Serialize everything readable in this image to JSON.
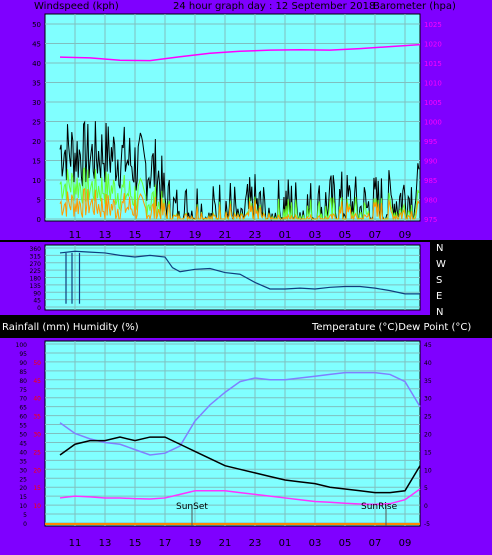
{
  "header": {
    "left_label": "Windspeed (kph)",
    "center_label": "24 hour graph day : 12 September 2018",
    "right_label": "Barometer (hpa)"
  },
  "x_ticks": [
    "11",
    "13",
    "15",
    "17",
    "19",
    "21",
    "23",
    "01",
    "03",
    "05",
    "07",
    "09"
  ],
  "wind_direction_labels": [
    "N",
    "W",
    "S",
    "E",
    "N"
  ],
  "bottom_header": {
    "left_label": "Rainfall (mm)  Humidity (%)",
    "right_label": "Temperature (°C)Dew Point (°C)"
  },
  "annotations": {
    "sunset": "SunSet",
    "sunrise": "SunRise"
  },
  "colors": {
    "panel_bg": "#80ffff",
    "frame": "#7f00ff",
    "grid": "#7fbfbf",
    "wind_gust": "#000000",
    "wind_avg": "#ff9900",
    "wind_mid": "#66ff33",
    "barometer": "#ff00ff",
    "direction": "#0f3f7f",
    "temperature": "#000000",
    "dewpoint": "#ff33ff",
    "humidity": "#8080ff",
    "rain_axis": "#ff0000"
  },
  "chart_data": [
    {
      "type": "line",
      "name": "wind-barometer",
      "left_axis": {
        "label": "Windspeed (kph)",
        "ticks": [
          0,
          5,
          10,
          15,
          20,
          25,
          30,
          35,
          40,
          45,
          50
        ],
        "range": [
          0,
          50
        ]
      },
      "right_axis": {
        "label": "Barometer (hpa)",
        "ticks": [
          975,
          980,
          985,
          990,
          995,
          1000,
          1005,
          1010,
          1015,
          1020,
          1025
        ],
        "range": [
          975,
          1025
        ]
      },
      "x_ticks": [
        "11",
        "13",
        "15",
        "17",
        "19",
        "21",
        "23",
        "01",
        "03",
        "05",
        "07",
        "09"
      ],
      "series": [
        {
          "key": "barometer",
          "axis": "right",
          "hours": [
            0,
            2,
            4,
            6,
            8,
            10,
            12,
            14,
            16,
            18,
            20,
            22,
            24
          ],
          "values": [
            1016.5,
            1016.3,
            1015.7,
            1015.6,
            1016.6,
            1017.5,
            1018.0,
            1018.3,
            1018.4,
            1018.3,
            1018.7,
            1019.2,
            1019.7
          ]
        },
        {
          "key": "wind_gust",
          "axis": "left",
          "hours": [
            0,
            1,
            2,
            3,
            4,
            5,
            6,
            6.5,
            7,
            8,
            9,
            10,
            11,
            12,
            13,
            14,
            15,
            16,
            17,
            18,
            19,
            20,
            21,
            22,
            23,
            24
          ],
          "values": [
            18,
            17,
            16,
            17,
            16,
            14,
            13,
            12,
            4,
            0,
            3,
            0,
            3,
            0,
            3,
            0,
            3,
            2,
            2,
            3,
            4,
            2,
            3,
            4,
            6,
            6
          ]
        },
        {
          "key": "wind_mid",
          "axis": "left",
          "hours": [
            0,
            1,
            2,
            3,
            4,
            5,
            6,
            6.5,
            7,
            8,
            9,
            10,
            11,
            12,
            13,
            14,
            15,
            16,
            17,
            18,
            19,
            20,
            21,
            22,
            23,
            24
          ],
          "values": [
            9,
            9,
            8,
            8,
            7,
            6,
            5,
            4,
            1,
            0,
            1,
            0,
            1,
            0,
            1,
            0,
            1,
            1,
            1,
            1,
            1,
            1,
            1,
            2,
            2,
            3
          ]
        },
        {
          "key": "wind_avg",
          "axis": "left",
          "hours": [
            0,
            1,
            2,
            3,
            4,
            5,
            6,
            6.5,
            7,
            8,
            9,
            10,
            11,
            12,
            13,
            14,
            15,
            16,
            17,
            18,
            19,
            20,
            21,
            22,
            23,
            24
          ],
          "values": [
            4,
            4,
            4,
            3,
            3,
            3,
            2,
            2,
            1,
            0,
            1,
            0,
            1,
            0,
            1,
            0,
            0,
            0,
            0,
            0,
            1,
            0,
            1,
            1,
            1,
            1
          ]
        }
      ]
    },
    {
      "type": "line",
      "name": "wind-direction",
      "y_ticks": [
        0,
        45,
        90,
        135,
        180,
        225,
        270,
        315,
        360
      ],
      "y_labels": [
        "N",
        "W",
        "S",
        "E",
        "N"
      ],
      "series": [
        {
          "key": "direction",
          "hours": [
            0,
            1,
            2,
            3,
            4,
            5,
            6,
            7,
            7.5,
            8,
            9,
            10,
            11,
            12,
            13,
            14,
            15,
            16,
            17,
            18,
            19,
            20,
            21,
            22,
            23,
            24
          ],
          "values": [
            330,
            340,
            335,
            330,
            315,
            305,
            315,
            305,
            240,
            215,
            230,
            235,
            210,
            200,
            150,
            110,
            110,
            115,
            110,
            120,
            125,
            125,
            115,
            100,
            80,
            80
          ]
        }
      ]
    },
    {
      "type": "line",
      "name": "temperature-humidity",
      "left_axis": {
        "label": "Rainfall (mm)  Humidity (%)",
        "humidity_ticks": [
          0,
          5,
          10,
          15,
          20,
          25,
          30,
          35,
          40,
          45,
          50,
          55,
          60,
          65,
          70,
          75,
          80,
          85,
          90,
          95,
          100
        ],
        "rain_ticks": [
          10,
          15,
          20,
          25,
          30,
          35,
          40,
          45,
          50
        ]
      },
      "right_axis": {
        "label": "Temperature (°C)Dew Point (°C)",
        "ticks": [
          -5,
          0,
          5,
          10,
          15,
          20,
          25,
          30,
          35,
          40,
          45
        ],
        "range": [
          -5,
          45
        ]
      },
      "series": [
        {
          "key": "humidity",
          "axis": "left",
          "hours": [
            0,
            1,
            2,
            3,
            4,
            5,
            6,
            7,
            8,
            9,
            10,
            11,
            12,
            13,
            14,
            15,
            16,
            17,
            18,
            19,
            20,
            21,
            22,
            23,
            24
          ],
          "values": [
            56,
            50,
            47,
            45,
            44,
            41,
            38,
            39,
            43,
            57,
            66,
            73,
            79,
            81,
            80,
            80,
            81,
            82,
            83,
            84,
            84,
            84,
            83,
            79,
            65
          ]
        },
        {
          "key": "temperature",
          "axis": "right",
          "hours": [
            0,
            1,
            2,
            3,
            4,
            5,
            6,
            7,
            8,
            9,
            10,
            11,
            12,
            13,
            14,
            15,
            16,
            17,
            18,
            19,
            20,
            21,
            22,
            23,
            24
          ],
          "values": [
            14,
            17,
            18,
            18,
            19,
            18,
            19,
            19,
            17,
            15,
            13,
            11,
            10,
            9,
            8,
            7,
            6.5,
            6,
            5,
            4.5,
            4,
            3.5,
            3.5,
            4,
            11
          ]
        },
        {
          "key": "dewpoint",
          "axis": "right",
          "hours": [
            0,
            1,
            2,
            3,
            4,
            5,
            6,
            7,
            8,
            9,
            10,
            11,
            12,
            13,
            14,
            15,
            16,
            17,
            18,
            19,
            20,
            21,
            22,
            23,
            24
          ],
          "values": [
            2,
            2.5,
            2.3,
            2,
            2,
            1.8,
            1.7,
            2,
            3,
            4,
            4,
            4,
            3.5,
            3,
            2.5,
            2,
            1.5,
            1,
            0.8,
            0.5,
            0.3,
            0.2,
            0.4,
            1.5,
            4.5
          ]
        },
        {
          "key": "rainfall",
          "axis": "left",
          "hours": [
            0,
            24
          ],
          "values": [
            0,
            0
          ]
        }
      ]
    }
  ]
}
